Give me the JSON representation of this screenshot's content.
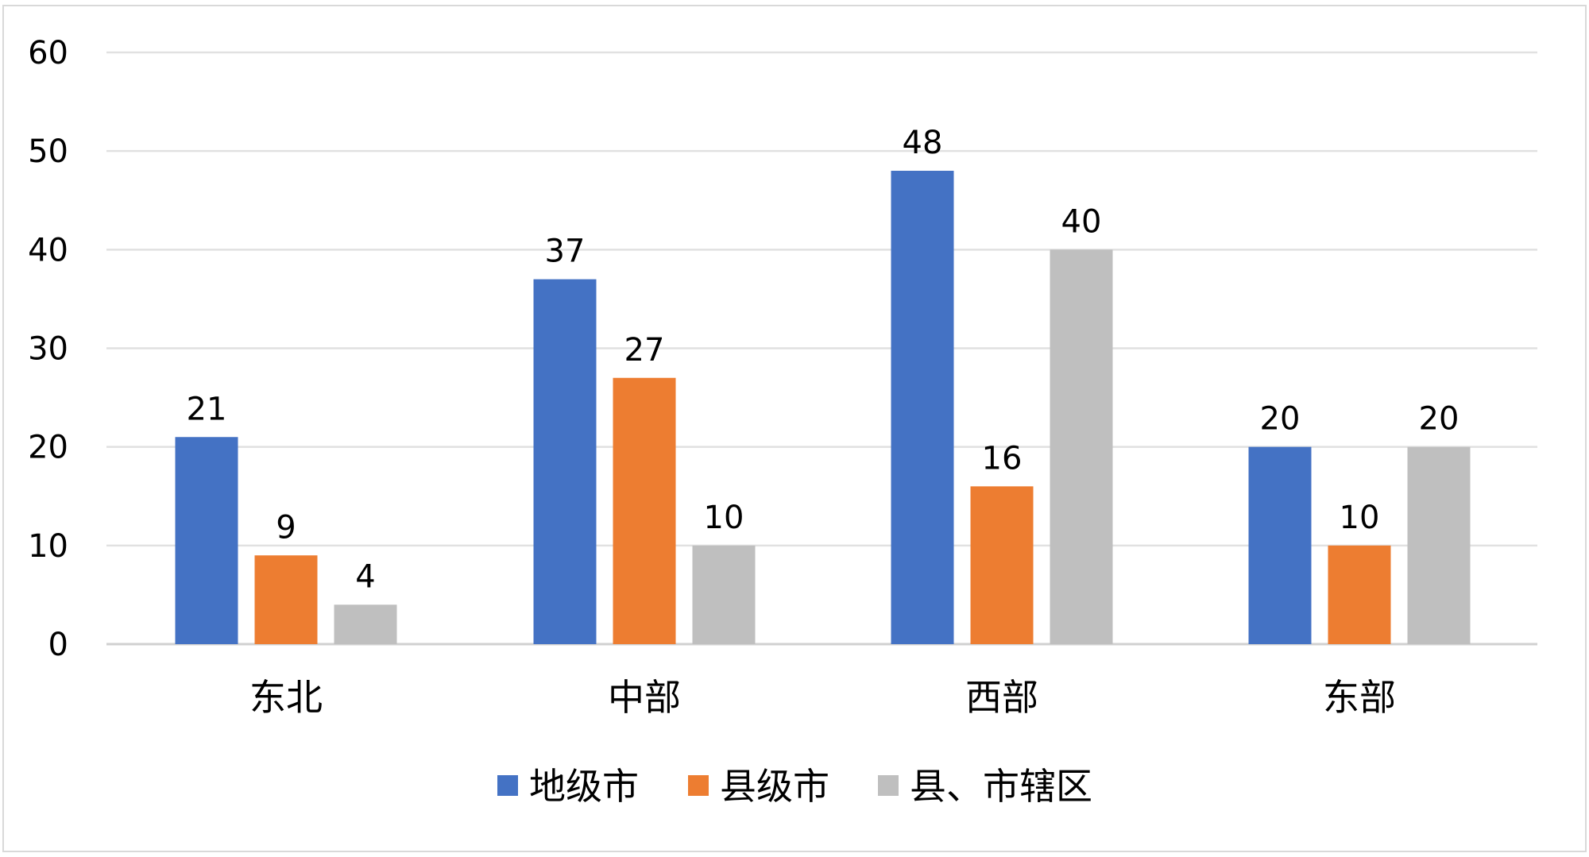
{
  "chart_data": {
    "type": "bar",
    "categories": [
      "东北",
      "中部",
      "西部",
      "东部"
    ],
    "series": [
      {
        "name": "地级市",
        "values": [
          21,
          37,
          48,
          20
        ],
        "color": "#4472C4"
      },
      {
        "name": "县级市",
        "values": [
          9,
          27,
          16,
          10
        ],
        "color": "#ED7D31"
      },
      {
        "name": "县、市辖区",
        "values": [
          4,
          10,
          40,
          20
        ],
        "color": "#BFBFBF"
      }
    ],
    "yticks": [
      "0",
      "10",
      "20",
      "30",
      "40",
      "50",
      "60"
    ],
    "ylim": [
      0,
      60
    ],
    "grid": true,
    "data_labels": true,
    "legend_position": "bottom",
    "title": "",
    "xlabel": "",
    "ylabel": ""
  }
}
